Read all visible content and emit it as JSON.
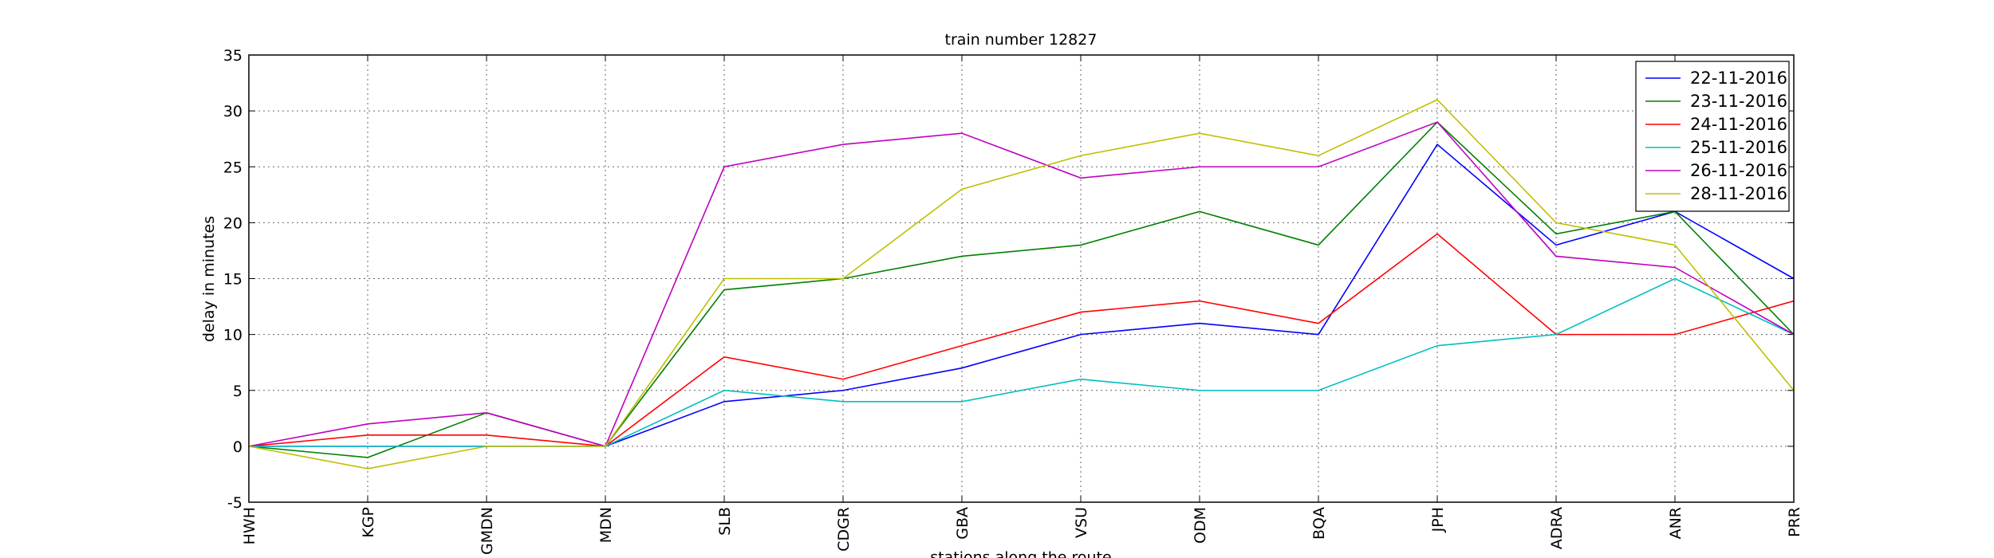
{
  "chart_data": {
    "type": "line",
    "title": "train number 12827",
    "xlabel": "stations along the route",
    "ylabel": "delay in minutes",
    "categories": [
      "HWH",
      "KGP",
      "GMDN",
      "MDN",
      "SLB",
      "CDGR",
      "GBA",
      "VSU",
      "ODM",
      "BQA",
      "JPH",
      "ADRA",
      "ANR",
      "PRR"
    ],
    "series": [
      {
        "name": "22-11-2016",
        "color": "#0000ff",
        "values": [
          0,
          0,
          0,
          0,
          4,
          5,
          7,
          10,
          11,
          10,
          27,
          18,
          21,
          15
        ]
      },
      {
        "name": "23-11-2016",
        "color": "#008000",
        "values": [
          0,
          -1,
          3,
          0,
          14,
          15,
          17,
          18,
          21,
          18,
          29,
          19,
          21,
          10
        ]
      },
      {
        "name": "24-11-2016",
        "color": "#ff0000",
        "values": [
          0,
          1,
          1,
          0,
          8,
          6,
          9,
          12,
          13,
          11,
          19,
          10,
          10,
          13
        ]
      },
      {
        "name": "25-11-2016",
        "color": "#00bfbf",
        "values": [
          0,
          0,
          0,
          0,
          5,
          4,
          4,
          6,
          5,
          5,
          9,
          10,
          15,
          10
        ]
      },
      {
        "name": "26-11-2016",
        "color": "#bf00bf",
        "values": [
          0,
          2,
          3,
          0,
          25,
          27,
          28,
          24,
          25,
          25,
          29,
          17,
          16,
          10
        ]
      },
      {
        "name": "28-11-2016",
        "color": "#bfbf00",
        "values": [
          0,
          -2,
          0,
          0,
          15,
          15,
          23,
          26,
          28,
          26,
          31,
          20,
          18,
          5
        ]
      }
    ],
    "ylim": [
      -5,
      35
    ],
    "yticks": [
      -5,
      0,
      5,
      10,
      15,
      20,
      25,
      30,
      35
    ],
    "grid": true,
    "legend": "upper right"
  }
}
